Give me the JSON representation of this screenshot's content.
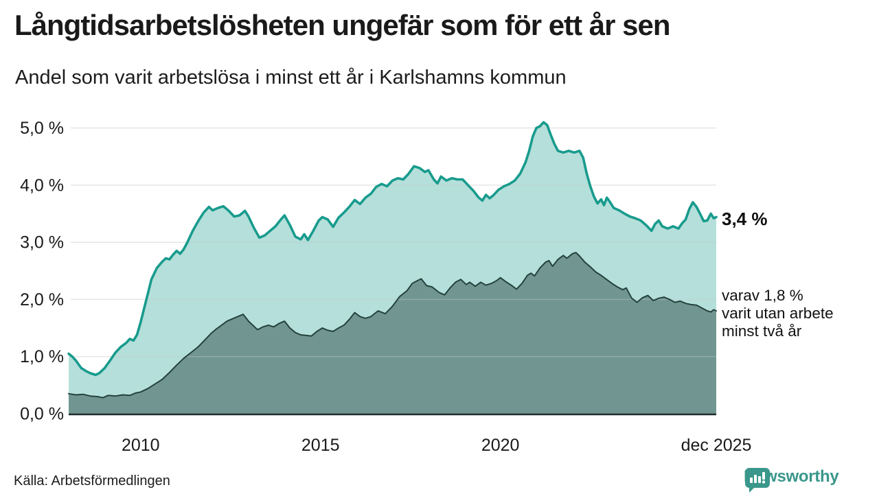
{
  "header": {
    "title": "Långtidsarbetslösheten ungefär som för ett år sen",
    "subtitle": "Andel som varit arbetslösa i minst ett år i Karlshamns kommun"
  },
  "annotations": {
    "teal_end_label": "3,4 %",
    "dark_end_label": "varav 1,8 %\nvarit utan arbete\nminst två år"
  },
  "footer": {
    "source": "Källa: Arbetsförmedlingen",
    "brand": "Newsworthy"
  },
  "colors": {
    "teal_line": "#189b8d",
    "teal_fill": "rgba(24,155,141,0.32)",
    "dark_line": "#24423d",
    "dark_fill": "rgba(31,61,56,0.45)",
    "gridline": "#dedede",
    "gridline_overlay": "rgba(255,255,255,0.28)",
    "axis_line": "#1f2e2b",
    "brand_teal": "#3a978b"
  },
  "chart_data": {
    "type": "area",
    "title": "Långtidsarbetslösheten ungefär som för ett år sen",
    "subtitle": "Andel som varit arbetslösa i minst ett år i Karlshamns kommun",
    "xlabel": "",
    "ylabel": "",
    "x_domain": [
      2008,
      2026
    ],
    "y_domain": [
      0,
      5
    ],
    "grid": "horizontal",
    "legend": "none",
    "y_ticks": [
      {
        "value": 0,
        "label": "0,0 %"
      },
      {
        "value": 1,
        "label": "1,0 %"
      },
      {
        "value": 2,
        "label": "2,0 %"
      },
      {
        "value": 3,
        "label": "3,0 %"
      },
      {
        "value": 4,
        "label": "4,0 %"
      },
      {
        "value": 5,
        "label": "5,0 %"
      }
    ],
    "x_ticks": [
      {
        "value": 2010,
        "label": "2010"
      },
      {
        "value": 2015,
        "label": "2015"
      },
      {
        "value": 2020,
        "label": "2020"
      },
      {
        "value": 2026,
        "label": "dec 2025"
      }
    ],
    "series": [
      {
        "name": "Andel arbetslösa minst ett år",
        "end_value": 3.4,
        "end_label": "3,4 %",
        "points": [
          [
            2008.0,
            1.05
          ],
          [
            2008.1,
            1.0
          ],
          [
            2008.2,
            0.93
          ],
          [
            2008.35,
            0.8
          ],
          [
            2008.5,
            0.74
          ],
          [
            2008.6,
            0.71
          ],
          [
            2008.75,
            0.68
          ],
          [
            2008.85,
            0.71
          ],
          [
            2009.0,
            0.8
          ],
          [
            2009.15,
            0.93
          ],
          [
            2009.3,
            1.07
          ],
          [
            2009.45,
            1.17
          ],
          [
            2009.6,
            1.24
          ],
          [
            2009.7,
            1.31
          ],
          [
            2009.8,
            1.28
          ],
          [
            2009.9,
            1.38
          ],
          [
            2010.0,
            1.6
          ],
          [
            2010.1,
            1.85
          ],
          [
            2010.2,
            2.1
          ],
          [
            2010.3,
            2.35
          ],
          [
            2010.45,
            2.55
          ],
          [
            2010.6,
            2.66
          ],
          [
            2010.7,
            2.72
          ],
          [
            2010.8,
            2.7
          ],
          [
            2010.9,
            2.78
          ],
          [
            2011.0,
            2.85
          ],
          [
            2011.1,
            2.8
          ],
          [
            2011.2,
            2.88
          ],
          [
            2011.3,
            3.0
          ],
          [
            2011.45,
            3.2
          ],
          [
            2011.6,
            3.37
          ],
          [
            2011.75,
            3.52
          ],
          [
            2011.9,
            3.62
          ],
          [
            2012.0,
            3.56
          ],
          [
            2012.15,
            3.6
          ],
          [
            2012.3,
            3.63
          ],
          [
            2012.45,
            3.55
          ],
          [
            2012.6,
            3.45
          ],
          [
            2012.75,
            3.47
          ],
          [
            2012.9,
            3.55
          ],
          [
            2013.0,
            3.45
          ],
          [
            2013.15,
            3.25
          ],
          [
            2013.3,
            3.08
          ],
          [
            2013.45,
            3.12
          ],
          [
            2013.6,
            3.2
          ],
          [
            2013.75,
            3.28
          ],
          [
            2013.9,
            3.4
          ],
          [
            2014.0,
            3.47
          ],
          [
            2014.15,
            3.3
          ],
          [
            2014.3,
            3.1
          ],
          [
            2014.45,
            3.05
          ],
          [
            2014.55,
            3.14
          ],
          [
            2014.65,
            3.04
          ],
          [
            2014.8,
            3.2
          ],
          [
            2014.95,
            3.38
          ],
          [
            2015.05,
            3.44
          ],
          [
            2015.2,
            3.4
          ],
          [
            2015.35,
            3.27
          ],
          [
            2015.5,
            3.43
          ],
          [
            2015.65,
            3.52
          ],
          [
            2015.8,
            3.62
          ],
          [
            2015.95,
            3.74
          ],
          [
            2016.1,
            3.67
          ],
          [
            2016.25,
            3.78
          ],
          [
            2016.4,
            3.85
          ],
          [
            2016.55,
            3.97
          ],
          [
            2016.7,
            4.02
          ],
          [
            2016.85,
            3.98
          ],
          [
            2017.0,
            4.08
          ],
          [
            2017.15,
            4.12
          ],
          [
            2017.3,
            4.1
          ],
          [
            2017.45,
            4.2
          ],
          [
            2017.6,
            4.33
          ],
          [
            2017.75,
            4.3
          ],
          [
            2017.9,
            4.23
          ],
          [
            2018.0,
            4.26
          ],
          [
            2018.15,
            4.1
          ],
          [
            2018.25,
            4.03
          ],
          [
            2018.35,
            4.15
          ],
          [
            2018.5,
            4.08
          ],
          [
            2018.65,
            4.12
          ],
          [
            2018.8,
            4.1
          ],
          [
            2018.95,
            4.1
          ],
          [
            2019.1,
            4.0
          ],
          [
            2019.25,
            3.9
          ],
          [
            2019.4,
            3.78
          ],
          [
            2019.5,
            3.73
          ],
          [
            2019.6,
            3.83
          ],
          [
            2019.7,
            3.77
          ],
          [
            2019.8,
            3.82
          ],
          [
            2019.95,
            3.92
          ],
          [
            2020.1,
            3.98
          ],
          [
            2020.25,
            4.02
          ],
          [
            2020.4,
            4.08
          ],
          [
            2020.55,
            4.2
          ],
          [
            2020.7,
            4.4
          ],
          [
            2020.8,
            4.6
          ],
          [
            2020.9,
            4.85
          ],
          [
            2021.0,
            5.0
          ],
          [
            2021.1,
            5.03
          ],
          [
            2021.2,
            5.1
          ],
          [
            2021.3,
            5.05
          ],
          [
            2021.4,
            4.88
          ],
          [
            2021.5,
            4.72
          ],
          [
            2021.6,
            4.6
          ],
          [
            2021.75,
            4.57
          ],
          [
            2021.9,
            4.6
          ],
          [
            2022.05,
            4.57
          ],
          [
            2022.2,
            4.6
          ],
          [
            2022.3,
            4.48
          ],
          [
            2022.4,
            4.2
          ],
          [
            2022.5,
            3.98
          ],
          [
            2022.6,
            3.8
          ],
          [
            2022.7,
            3.68
          ],
          [
            2022.8,
            3.75
          ],
          [
            2022.88,
            3.65
          ],
          [
            2022.96,
            3.78
          ],
          [
            2023.05,
            3.7
          ],
          [
            2023.15,
            3.6
          ],
          [
            2023.3,
            3.56
          ],
          [
            2023.45,
            3.5
          ],
          [
            2023.6,
            3.45
          ],
          [
            2023.75,
            3.42
          ],
          [
            2023.9,
            3.38
          ],
          [
            2024.05,
            3.3
          ],
          [
            2024.2,
            3.2
          ],
          [
            2024.3,
            3.32
          ],
          [
            2024.4,
            3.38
          ],
          [
            2024.5,
            3.28
          ],
          [
            2024.65,
            3.24
          ],
          [
            2024.8,
            3.28
          ],
          [
            2024.95,
            3.24
          ],
          [
            2025.05,
            3.33
          ],
          [
            2025.15,
            3.4
          ],
          [
            2025.25,
            3.58
          ],
          [
            2025.35,
            3.7
          ],
          [
            2025.45,
            3.62
          ],
          [
            2025.55,
            3.5
          ],
          [
            2025.65,
            3.37
          ],
          [
            2025.75,
            3.38
          ],
          [
            2025.85,
            3.5
          ],
          [
            2025.93,
            3.42
          ],
          [
            2026.0,
            3.44
          ]
        ]
      },
      {
        "name": "varav utan arbete minst två år",
        "end_value": 1.8,
        "end_label": "varav 1,8 % varit utan arbete minst två år",
        "points": [
          [
            2008.0,
            0.35
          ],
          [
            2008.2,
            0.33
          ],
          [
            2008.4,
            0.34
          ],
          [
            2008.6,
            0.31
          ],
          [
            2008.8,
            0.3
          ],
          [
            2008.95,
            0.28
          ],
          [
            2009.1,
            0.32
          ],
          [
            2009.3,
            0.31
          ],
          [
            2009.5,
            0.33
          ],
          [
            2009.7,
            0.32
          ],
          [
            2009.85,
            0.36
          ],
          [
            2010.0,
            0.38
          ],
          [
            2010.2,
            0.44
          ],
          [
            2010.4,
            0.52
          ],
          [
            2010.6,
            0.6
          ],
          [
            2010.8,
            0.72
          ],
          [
            2011.0,
            0.85
          ],
          [
            2011.2,
            0.97
          ],
          [
            2011.4,
            1.07
          ],
          [
            2011.6,
            1.17
          ],
          [
            2011.8,
            1.3
          ],
          [
            2011.95,
            1.4
          ],
          [
            2012.1,
            1.48
          ],
          [
            2012.25,
            1.55
          ],
          [
            2012.4,
            1.62
          ],
          [
            2012.55,
            1.66
          ],
          [
            2012.7,
            1.7
          ],
          [
            2012.85,
            1.74
          ],
          [
            2013.0,
            1.62
          ],
          [
            2013.15,
            1.53
          ],
          [
            2013.25,
            1.47
          ],
          [
            2013.4,
            1.52
          ],
          [
            2013.55,
            1.55
          ],
          [
            2013.7,
            1.52
          ],
          [
            2013.85,
            1.58
          ],
          [
            2014.0,
            1.62
          ],
          [
            2014.15,
            1.5
          ],
          [
            2014.3,
            1.42
          ],
          [
            2014.45,
            1.38
          ],
          [
            2014.6,
            1.37
          ],
          [
            2014.75,
            1.36
          ],
          [
            2014.9,
            1.44
          ],
          [
            2015.05,
            1.5
          ],
          [
            2015.2,
            1.46
          ],
          [
            2015.35,
            1.44
          ],
          [
            2015.5,
            1.5
          ],
          [
            2015.65,
            1.55
          ],
          [
            2015.8,
            1.65
          ],
          [
            2015.95,
            1.77
          ],
          [
            2016.1,
            1.7
          ],
          [
            2016.25,
            1.67
          ],
          [
            2016.4,
            1.7
          ],
          [
            2016.6,
            1.8
          ],
          [
            2016.8,
            1.75
          ],
          [
            2017.0,
            1.88
          ],
          [
            2017.2,
            2.05
          ],
          [
            2017.4,
            2.15
          ],
          [
            2017.55,
            2.28
          ],
          [
            2017.7,
            2.33
          ],
          [
            2017.8,
            2.36
          ],
          [
            2017.95,
            2.24
          ],
          [
            2018.1,
            2.22
          ],
          [
            2018.3,
            2.12
          ],
          [
            2018.45,
            2.08
          ],
          [
            2018.6,
            2.2
          ],
          [
            2018.75,
            2.3
          ],
          [
            2018.9,
            2.35
          ],
          [
            2019.05,
            2.26
          ],
          [
            2019.15,
            2.3
          ],
          [
            2019.3,
            2.23
          ],
          [
            2019.45,
            2.3
          ],
          [
            2019.6,
            2.25
          ],
          [
            2019.75,
            2.28
          ],
          [
            2019.9,
            2.33
          ],
          [
            2020.0,
            2.38
          ],
          [
            2020.15,
            2.31
          ],
          [
            2020.3,
            2.25
          ],
          [
            2020.45,
            2.18
          ],
          [
            2020.6,
            2.28
          ],
          [
            2020.75,
            2.42
          ],
          [
            2020.85,
            2.46
          ],
          [
            2020.95,
            2.41
          ],
          [
            2021.1,
            2.55
          ],
          [
            2021.25,
            2.65
          ],
          [
            2021.35,
            2.68
          ],
          [
            2021.45,
            2.58
          ],
          [
            2021.6,
            2.7
          ],
          [
            2021.75,
            2.77
          ],
          [
            2021.85,
            2.72
          ],
          [
            2022.0,
            2.8
          ],
          [
            2022.1,
            2.82
          ],
          [
            2022.2,
            2.76
          ],
          [
            2022.35,
            2.65
          ],
          [
            2022.5,
            2.57
          ],
          [
            2022.65,
            2.48
          ],
          [
            2022.8,
            2.42
          ],
          [
            2022.95,
            2.35
          ],
          [
            2023.1,
            2.28
          ],
          [
            2023.25,
            2.22
          ],
          [
            2023.4,
            2.17
          ],
          [
            2023.5,
            2.2
          ],
          [
            2023.65,
            2.02
          ],
          [
            2023.8,
            1.95
          ],
          [
            2023.95,
            2.03
          ],
          [
            2024.1,
            2.07
          ],
          [
            2024.25,
            1.98
          ],
          [
            2024.4,
            2.02
          ],
          [
            2024.55,
            2.04
          ],
          [
            2024.7,
            2.0
          ],
          [
            2024.85,
            1.95
          ],
          [
            2025.0,
            1.97
          ],
          [
            2025.15,
            1.93
          ],
          [
            2025.3,
            1.91
          ],
          [
            2025.45,
            1.9
          ],
          [
            2025.6,
            1.85
          ],
          [
            2025.75,
            1.8
          ],
          [
            2025.85,
            1.78
          ],
          [
            2025.93,
            1.82
          ],
          [
            2026.0,
            1.8
          ]
        ]
      }
    ]
  }
}
